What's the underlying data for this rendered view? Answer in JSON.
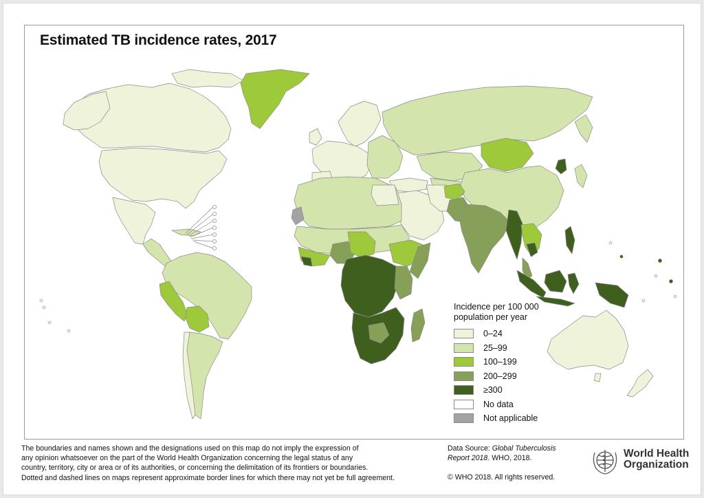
{
  "title": "Estimated TB incidence rates, 2017",
  "legend": {
    "title_line1": "Incidence per 100 000",
    "title_line2": "population per year",
    "items": [
      {
        "label": "0–24",
        "color": "#eef3da"
      },
      {
        "label": "25–99",
        "color": "#d3e5ad"
      },
      {
        "label": "100–199",
        "color": "#9dc93a"
      },
      {
        "label": "200–299",
        "color": "#86a058"
      },
      {
        "label": "≥300",
        "color": "#3e5f1e"
      },
      {
        "label": "No data",
        "color": "#ffffff"
      },
      {
        "label": "Not applicable",
        "color": "#a3a3a3"
      }
    ]
  },
  "disclaimer": {
    "line1": "The boundaries and names shown and the designations used on this map do not imply the expression of",
    "line2": "any opinion whatsoever on the part of the World Health Organization concerning the legal status of any",
    "line3": "country, territory, city or area or of its authorities, or concerning the delimitation of its frontiers or boundaries.",
    "line4": "Dotted and dashed lines on maps represent approximate border lines for which there may not yet be full agreement."
  },
  "source": {
    "prefix": "Data Source: ",
    "italic": "Global Tuberculosis Report 2018",
    "suffix": ". WHO, 2018."
  },
  "copyright": "© WHO 2018. All rights reserved.",
  "organization": {
    "line1": "World Health",
    "line2": "Organization"
  },
  "colors": {
    "border": "#8a8a8a",
    "frame": "#9a9a9a",
    "logo": "#555555"
  }
}
